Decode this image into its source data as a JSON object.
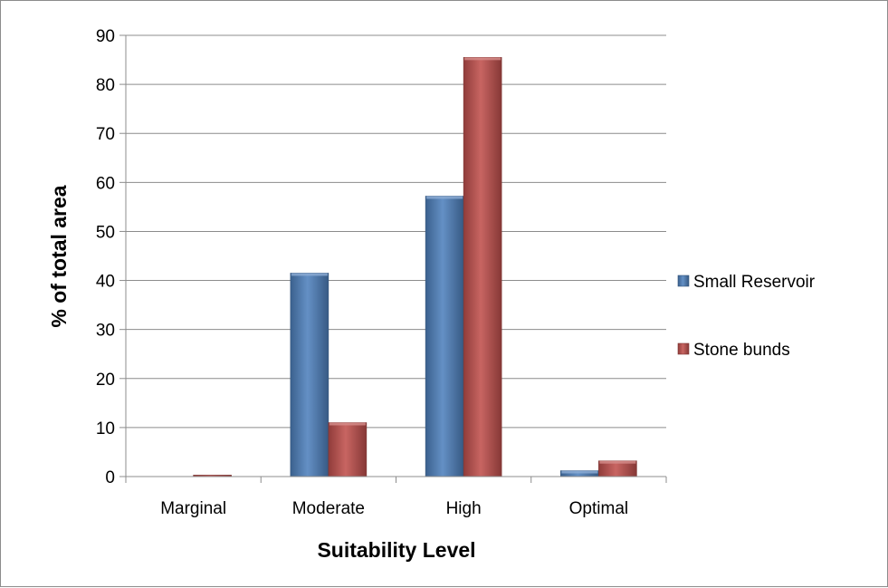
{
  "chart_data": {
    "type": "bar",
    "title": "",
    "xlabel": "Suitability Level",
    "ylabel": "% of total area",
    "categories": [
      "Marginal",
      "Moderate",
      "High",
      "Optimal"
    ],
    "series": [
      {
        "name": "Small Reservoir",
        "values": [
          0,
          41.5,
          57.2,
          1.2
        ],
        "color": "#4f81bd"
      },
      {
        "name": "Stone bunds",
        "values": [
          0.3,
          11,
          85.5,
          3.2
        ],
        "color": "#c0504d"
      }
    ],
    "ylim": [
      0,
      90
    ],
    "yticks": [
      0,
      10,
      20,
      30,
      40,
      50,
      60,
      70,
      80,
      90
    ],
    "grid": true,
    "legend_position": "right"
  }
}
